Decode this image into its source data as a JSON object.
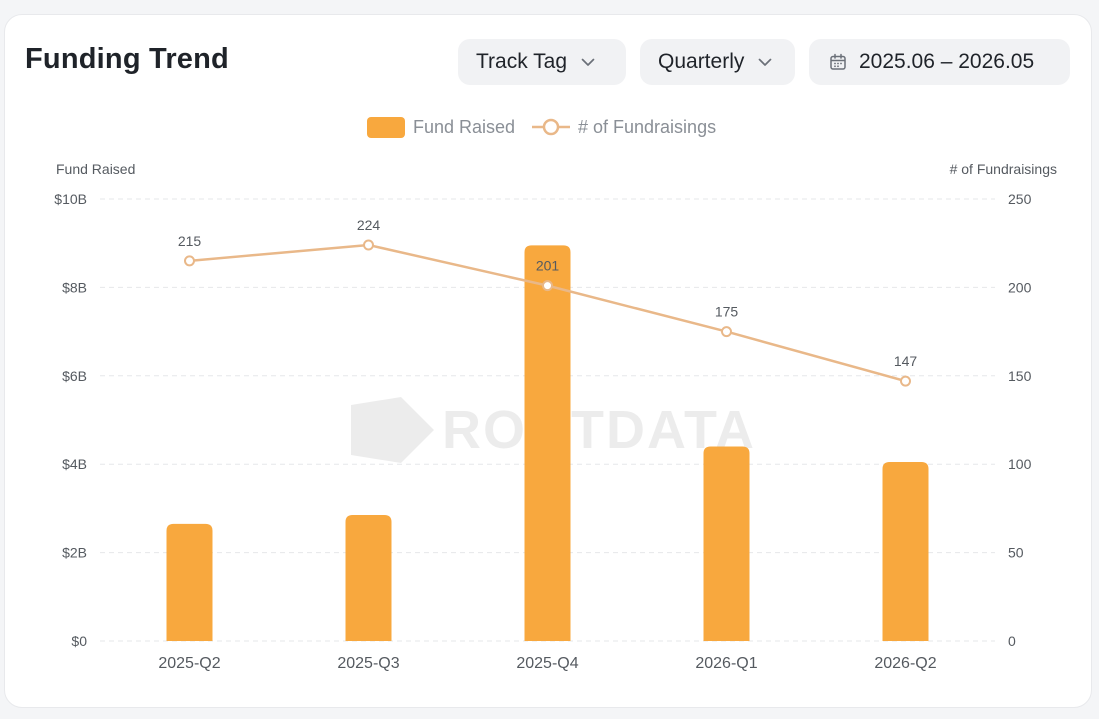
{
  "header": {
    "title": "Funding Trend",
    "track_tag_label": "Track Tag",
    "period_label": "Quarterly",
    "date_range": "2025.06 – 2026.05"
  },
  "watermark_text": "ROOTDATA",
  "colors": {
    "bar": "#f8a83e",
    "line": "#e9b889",
    "grid": "#e6e7ea",
    "axis_text": "#555a60"
  },
  "chart_data": {
    "type": "bar",
    "categories": [
      "2025-Q2",
      "2025-Q3",
      "2025-Q4",
      "2026-Q1",
      "2026-Q2"
    ],
    "series": [
      {
        "name": "Fund Raised",
        "type": "bar",
        "axis": "left",
        "values": [
          2.65,
          2.85,
          8.95,
          4.4,
          4.05
        ]
      },
      {
        "name": "# of Fundraisings",
        "type": "line",
        "axis": "right",
        "values": [
          215,
          224,
          201,
          175,
          147
        ]
      }
    ],
    "ylabel_left": "Fund Raised",
    "ylabel_right": "# of Fundraisings",
    "ylim_left": [
      0,
      10
    ],
    "ylim_right": [
      0,
      250
    ],
    "yticks_left": [
      "$0",
      "$2B",
      "$4B",
      "$6B",
      "$8B",
      "$10B"
    ],
    "yticks_right": [
      "0",
      "50",
      "100",
      "150",
      "200",
      "250"
    ],
    "legend": [
      "Fund Raised",
      "# of Fundraisings"
    ],
    "legend_position": "top-center",
    "grid": true
  }
}
